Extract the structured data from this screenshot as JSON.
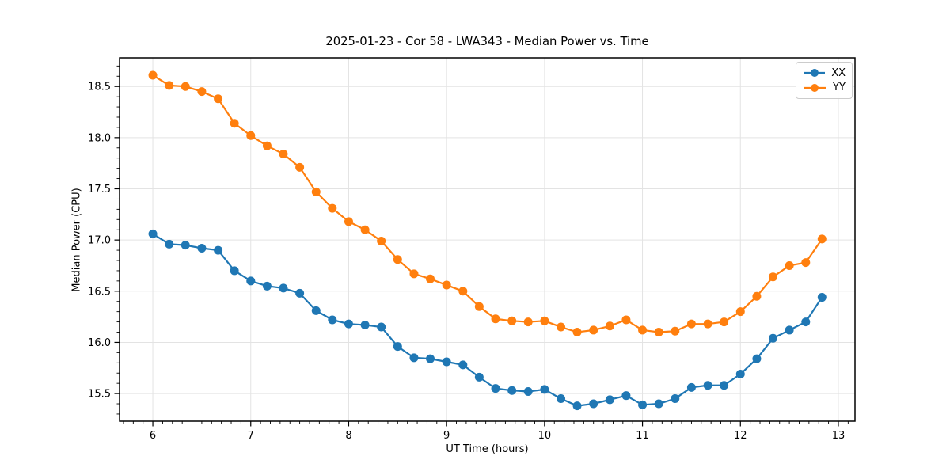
{
  "chart_data": {
    "type": "line",
    "title": "2025-01-23 - Cor 58 - LWA343 - Median Power vs. Time",
    "xlabel": "UT Time (hours)",
    "ylabel": "Median Power (CPU)",
    "x": [
      6.0,
      6.167,
      6.333,
      6.5,
      6.667,
      6.833,
      7.0,
      7.167,
      7.333,
      7.5,
      7.667,
      7.833,
      8.0,
      8.167,
      8.333,
      8.5,
      8.667,
      8.833,
      9.0,
      9.167,
      9.333,
      9.5,
      9.667,
      9.833,
      10.0,
      10.167,
      10.333,
      10.5,
      10.667,
      10.833,
      11.0,
      11.167,
      11.333,
      11.5,
      11.667,
      11.833,
      12.0,
      12.167,
      12.333,
      12.5,
      12.667,
      12.833
    ],
    "series": [
      {
        "name": "XX",
        "color": "#1f77b4",
        "values": [
          17.06,
          16.96,
          16.95,
          16.92,
          16.9,
          16.7,
          16.6,
          16.55,
          16.53,
          16.48,
          16.31,
          16.22,
          16.18,
          16.17,
          16.15,
          15.96,
          15.85,
          15.84,
          15.81,
          15.78,
          15.66,
          15.55,
          15.53,
          15.52,
          15.54,
          15.45,
          15.38,
          15.4,
          15.44,
          15.48,
          15.39,
          15.4,
          15.45,
          15.56,
          15.58,
          15.58,
          15.69,
          15.84,
          16.04,
          16.12,
          16.2,
          16.44
        ]
      },
      {
        "name": "YY",
        "color": "#ff7f0e",
        "values": [
          18.61,
          18.51,
          18.5,
          18.45,
          18.38,
          18.14,
          18.02,
          17.92,
          17.84,
          17.71,
          17.47,
          17.31,
          17.18,
          17.1,
          16.99,
          16.81,
          16.67,
          16.62,
          16.56,
          16.5,
          16.35,
          16.23,
          16.21,
          16.2,
          16.21,
          16.15,
          16.1,
          16.12,
          16.16,
          16.22,
          16.12,
          16.1,
          16.11,
          16.18,
          16.18,
          16.2,
          16.3,
          16.45,
          16.64,
          16.75,
          16.78,
          17.01
        ]
      }
    ],
    "xlim": [
      5.66,
      13.17
    ],
    "ylim": [
      15.23,
      18.78
    ],
    "x_ticks": [
      6,
      7,
      8,
      9,
      10,
      11,
      12,
      13
    ],
    "x_tick_labels": [
      "6",
      "7",
      "8",
      "9",
      "10",
      "11",
      "12",
      "13"
    ],
    "y_ticks": [
      15.5,
      16.0,
      16.5,
      17.0,
      17.5,
      18.0,
      18.5
    ],
    "y_tick_labels": [
      "15.5",
      "16.0",
      "16.5",
      "17.0",
      "17.5",
      "18.0",
      "18.5"
    ],
    "minor_tick_step_x": 0.1,
    "minor_tick_step_y": 0.1,
    "grid": true,
    "grid_color": "#e3e3e3",
    "legend_position": "upper right",
    "marker": "o"
  }
}
